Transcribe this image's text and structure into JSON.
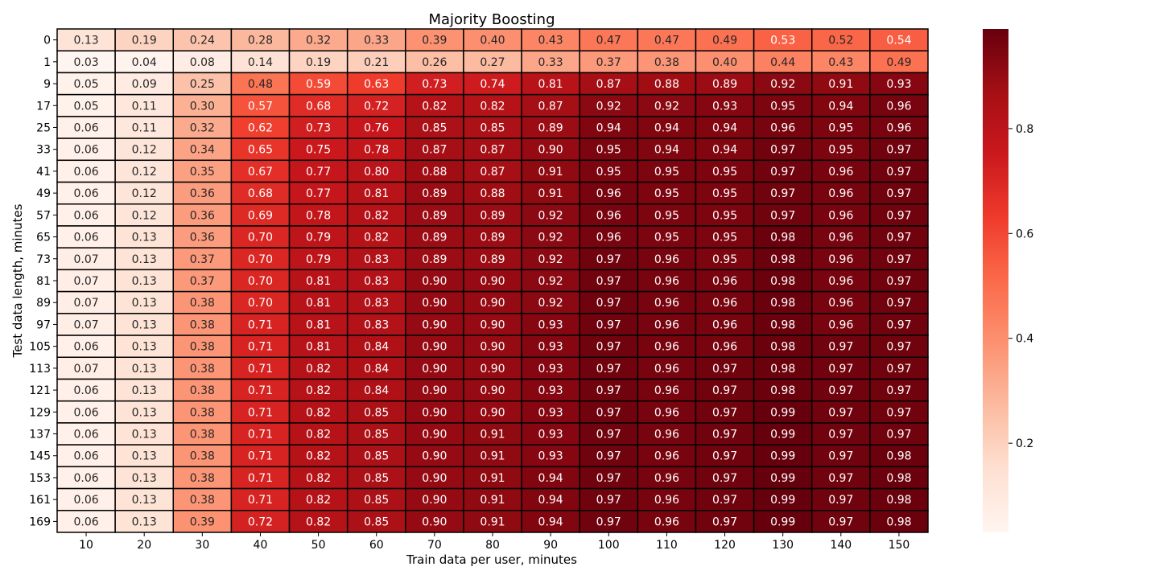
{
  "chart_data": {
    "type": "heatmap",
    "title": "Majority Boosting",
    "xlabel": "Train data per user, minutes",
    "ylabel": "Test data length, minutes",
    "x": [
      "10",
      "20",
      "30",
      "40",
      "50",
      "60",
      "70",
      "80",
      "90",
      "100",
      "110",
      "120",
      "130",
      "140",
      "150"
    ],
    "y": [
      "0",
      "1",
      "9",
      "17",
      "25",
      "33",
      "41",
      "49",
      "57",
      "65",
      "73",
      "81",
      "89",
      "97",
      "105",
      "113",
      "121",
      "129",
      "137",
      "145",
      "153",
      "161",
      "169"
    ],
    "values": [
      [
        0.13,
        0.19,
        0.24,
        0.28,
        0.32,
        0.33,
        0.39,
        0.4,
        0.43,
        0.47,
        0.47,
        0.49,
        0.53,
        0.52,
        0.54
      ],
      [
        0.03,
        0.04,
        0.08,
        0.14,
        0.19,
        0.21,
        0.26,
        0.27,
        0.33,
        0.37,
        0.38,
        0.4,
        0.44,
        0.43,
        0.49
      ],
      [
        0.05,
        0.09,
        0.25,
        0.48,
        0.59,
        0.63,
        0.73,
        0.74,
        0.81,
        0.87,
        0.88,
        0.89,
        0.92,
        0.91,
        0.93
      ],
      [
        0.05,
        0.11,
        0.3,
        0.57,
        0.68,
        0.72,
        0.82,
        0.82,
        0.87,
        0.92,
        0.92,
        0.93,
        0.95,
        0.94,
        0.96
      ],
      [
        0.06,
        0.11,
        0.32,
        0.62,
        0.73,
        0.76,
        0.85,
        0.85,
        0.89,
        0.94,
        0.94,
        0.94,
        0.96,
        0.95,
        0.96
      ],
      [
        0.06,
        0.12,
        0.34,
        0.65,
        0.75,
        0.78,
        0.87,
        0.87,
        0.9,
        0.95,
        0.94,
        0.94,
        0.97,
        0.95,
        0.97
      ],
      [
        0.06,
        0.12,
        0.35,
        0.67,
        0.77,
        0.8,
        0.88,
        0.87,
        0.91,
        0.95,
        0.95,
        0.95,
        0.97,
        0.96,
        0.97
      ],
      [
        0.06,
        0.12,
        0.36,
        0.68,
        0.77,
        0.81,
        0.89,
        0.88,
        0.91,
        0.96,
        0.95,
        0.95,
        0.97,
        0.96,
        0.97
      ],
      [
        0.06,
        0.12,
        0.36,
        0.69,
        0.78,
        0.82,
        0.89,
        0.89,
        0.92,
        0.96,
        0.95,
        0.95,
        0.97,
        0.96,
        0.97
      ],
      [
        0.06,
        0.13,
        0.36,
        0.7,
        0.79,
        0.82,
        0.89,
        0.89,
        0.92,
        0.96,
        0.95,
        0.95,
        0.98,
        0.96,
        0.97
      ],
      [
        0.07,
        0.13,
        0.37,
        0.7,
        0.79,
        0.83,
        0.89,
        0.89,
        0.92,
        0.97,
        0.96,
        0.95,
        0.98,
        0.96,
        0.97
      ],
      [
        0.07,
        0.13,
        0.37,
        0.7,
        0.81,
        0.83,
        0.9,
        0.9,
        0.92,
        0.97,
        0.96,
        0.96,
        0.98,
        0.96,
        0.97
      ],
      [
        0.07,
        0.13,
        0.38,
        0.7,
        0.81,
        0.83,
        0.9,
        0.9,
        0.92,
        0.97,
        0.96,
        0.96,
        0.98,
        0.96,
        0.97
      ],
      [
        0.07,
        0.13,
        0.38,
        0.71,
        0.81,
        0.83,
        0.9,
        0.9,
        0.93,
        0.97,
        0.96,
        0.96,
        0.98,
        0.96,
        0.97
      ],
      [
        0.06,
        0.13,
        0.38,
        0.71,
        0.81,
        0.84,
        0.9,
        0.9,
        0.93,
        0.97,
        0.96,
        0.96,
        0.98,
        0.97,
        0.97
      ],
      [
        0.07,
        0.13,
        0.38,
        0.71,
        0.82,
        0.84,
        0.9,
        0.9,
        0.93,
        0.97,
        0.96,
        0.97,
        0.98,
        0.97,
        0.97
      ],
      [
        0.06,
        0.13,
        0.38,
        0.71,
        0.82,
        0.84,
        0.9,
        0.9,
        0.93,
        0.97,
        0.96,
        0.97,
        0.98,
        0.97,
        0.97
      ],
      [
        0.06,
        0.13,
        0.38,
        0.71,
        0.82,
        0.85,
        0.9,
        0.9,
        0.93,
        0.97,
        0.96,
        0.97,
        0.99,
        0.97,
        0.97
      ],
      [
        0.06,
        0.13,
        0.38,
        0.71,
        0.82,
        0.85,
        0.9,
        0.91,
        0.93,
        0.97,
        0.96,
        0.97,
        0.99,
        0.97,
        0.97
      ],
      [
        0.06,
        0.13,
        0.38,
        0.71,
        0.82,
        0.85,
        0.9,
        0.91,
        0.93,
        0.97,
        0.96,
        0.97,
        0.99,
        0.97,
        0.98
      ],
      [
        0.06,
        0.13,
        0.38,
        0.71,
        0.82,
        0.85,
        0.9,
        0.91,
        0.94,
        0.97,
        0.96,
        0.97,
        0.99,
        0.97,
        0.98
      ],
      [
        0.06,
        0.13,
        0.38,
        0.71,
        0.82,
        0.85,
        0.9,
        0.91,
        0.94,
        0.97,
        0.96,
        0.97,
        0.99,
        0.97,
        0.98
      ],
      [
        0.06,
        0.13,
        0.39,
        0.72,
        0.82,
        0.85,
        0.9,
        0.91,
        0.94,
        0.97,
        0.96,
        0.97,
        0.99,
        0.97,
        0.98
      ]
    ],
    "colorscale": "Reds",
    "vmin": 0.03,
    "vmax": 0.99,
    "colorbar_ticks": [
      0.2,
      0.4,
      0.6,
      0.8
    ],
    "colorbar_tick_labels": [
      "0.2",
      "0.4",
      "0.6",
      "0.8"
    ],
    "legend": "colorbar-right",
    "grid": false
  }
}
